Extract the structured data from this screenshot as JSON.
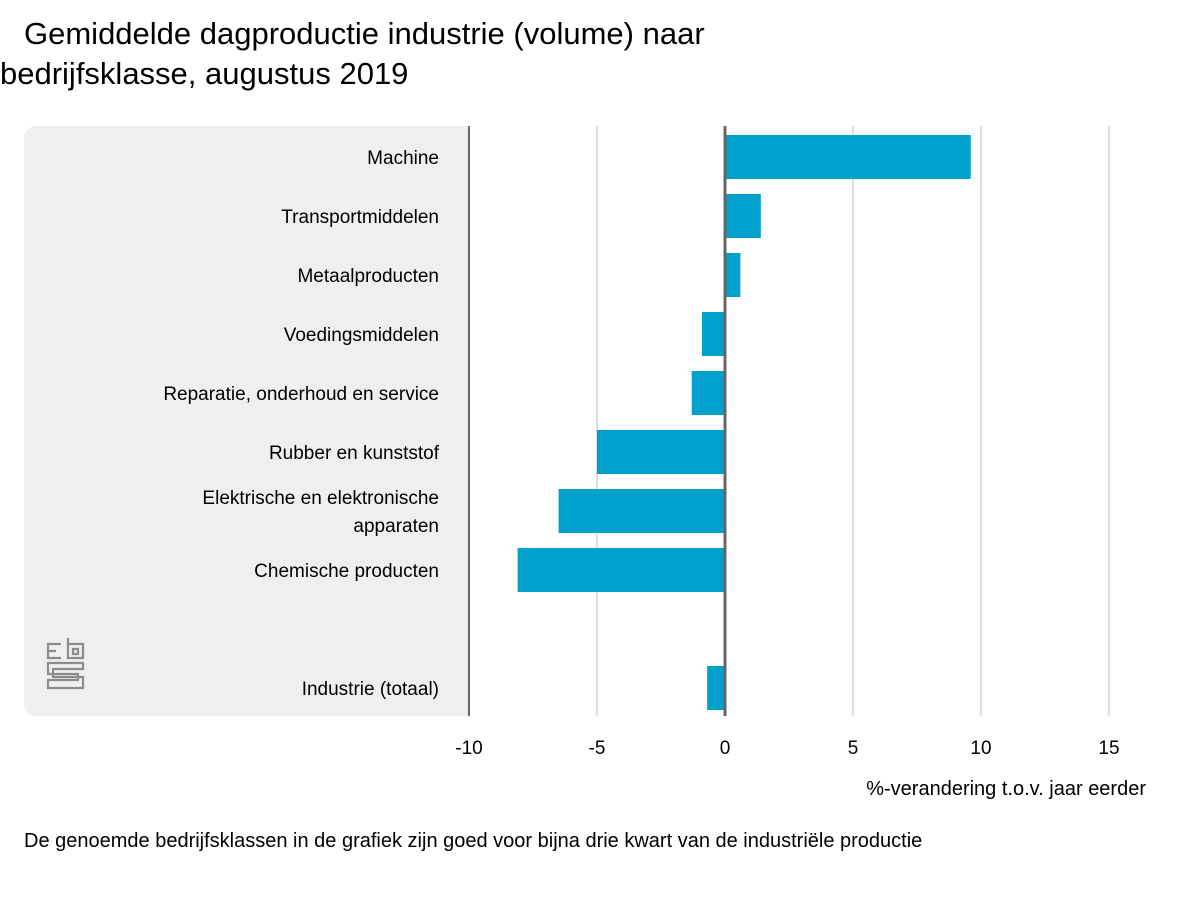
{
  "title_line1": "Gemiddelde dagproductie industrie (volume) naar",
  "title_line2": "bedrijfsklasse, augustus 2019",
  "footnote": "De genoemde bedrijfsklassen in de grafiek zijn goed voor bijna drie kwart van de industriële productie",
  "logo": "cbs-logo-icon",
  "chart_data": {
    "type": "bar",
    "orientation": "horizontal",
    "title": "Gemiddelde dagproductie industrie (volume) naar bedrijfsklasse, augustus 2019",
    "categories": [
      "Machine",
      "Transportmiddelen",
      "Metaalproducten",
      "Voedingsmiddelen",
      "Reparatie, onderhoud en service",
      "Rubber en kunststof",
      "Elektrische en elektronische apparaten",
      "Chemische producten",
      "Industrie (totaal)"
    ],
    "category_lines": [
      [
        "Machine"
      ],
      [
        "Transportmiddelen"
      ],
      [
        "Metaalproducten"
      ],
      [
        "Voedingsmiddelen"
      ],
      [
        "Reparatie, onderhoud en service"
      ],
      [
        "Rubber en kunststof"
      ],
      [
        "Elektrische en elektronische",
        "apparaten"
      ],
      [
        "Chemische producten"
      ],
      [
        "Industrie (totaal)"
      ]
    ],
    "values": [
      9.6,
      1.4,
      0.6,
      -0.9,
      -1.3,
      -5.0,
      -6.5,
      -8.1,
      -0.7
    ],
    "xlabel": "%-verandering t.o.v. jaar eerder",
    "ylabel": "",
    "xlim": [
      -10,
      15
    ],
    "xticks": [
      -10,
      -5,
      0,
      5,
      10,
      15
    ],
    "xtick_labels": [
      "-10",
      "-5",
      "0",
      "5",
      "10",
      "15"
    ],
    "grid": true,
    "bar_color": "#00a1cd",
    "gap_before_last": true
  }
}
